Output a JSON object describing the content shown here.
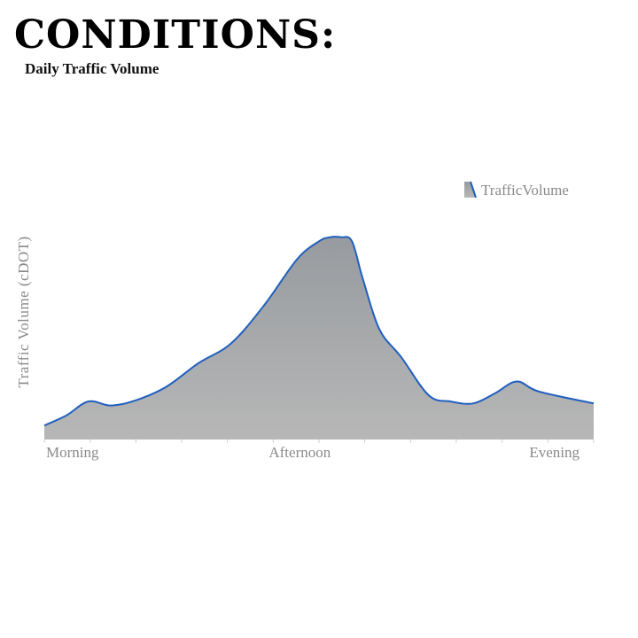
{
  "header": {
    "title": "CONDITIONS:",
    "subtitle": "Daily Traffic Volume"
  },
  "colors": {
    "line": "#1f5fbf",
    "area_top": "#979b9f",
    "area_bottom": "#b7b7b7",
    "text_muted": "#8a8a8a"
  },
  "chart_data": {
    "type": "area",
    "title": "",
    "xlabel": "",
    "ylabel": "Traffic Volume (cDOT)",
    "x_tick_labels": [
      "Morning",
      "Afternoon",
      "Evening"
    ],
    "grid": false,
    "legend_position": "top-right",
    "ylim": [
      0,
      100
    ],
    "series": [
      {
        "name": "TrafficVolume",
        "x": [
          0,
          0.04,
          0.08,
          0.12,
          0.16,
          0.22,
          0.28,
          0.34,
          0.4,
          0.46,
          0.5,
          0.52,
          0.54,
          0.56,
          0.58,
          0.61,
          0.65,
          0.7,
          0.74,
          0.78,
          0.82,
          0.86,
          0.9,
          1.0
        ],
        "values": [
          7,
          12,
          19,
          17,
          19,
          26,
          38,
          48,
          67,
          90,
          99,
          101,
          101,
          99,
          80,
          55,
          41,
          22,
          19,
          18,
          23,
          29,
          24,
          18
        ]
      }
    ]
  }
}
